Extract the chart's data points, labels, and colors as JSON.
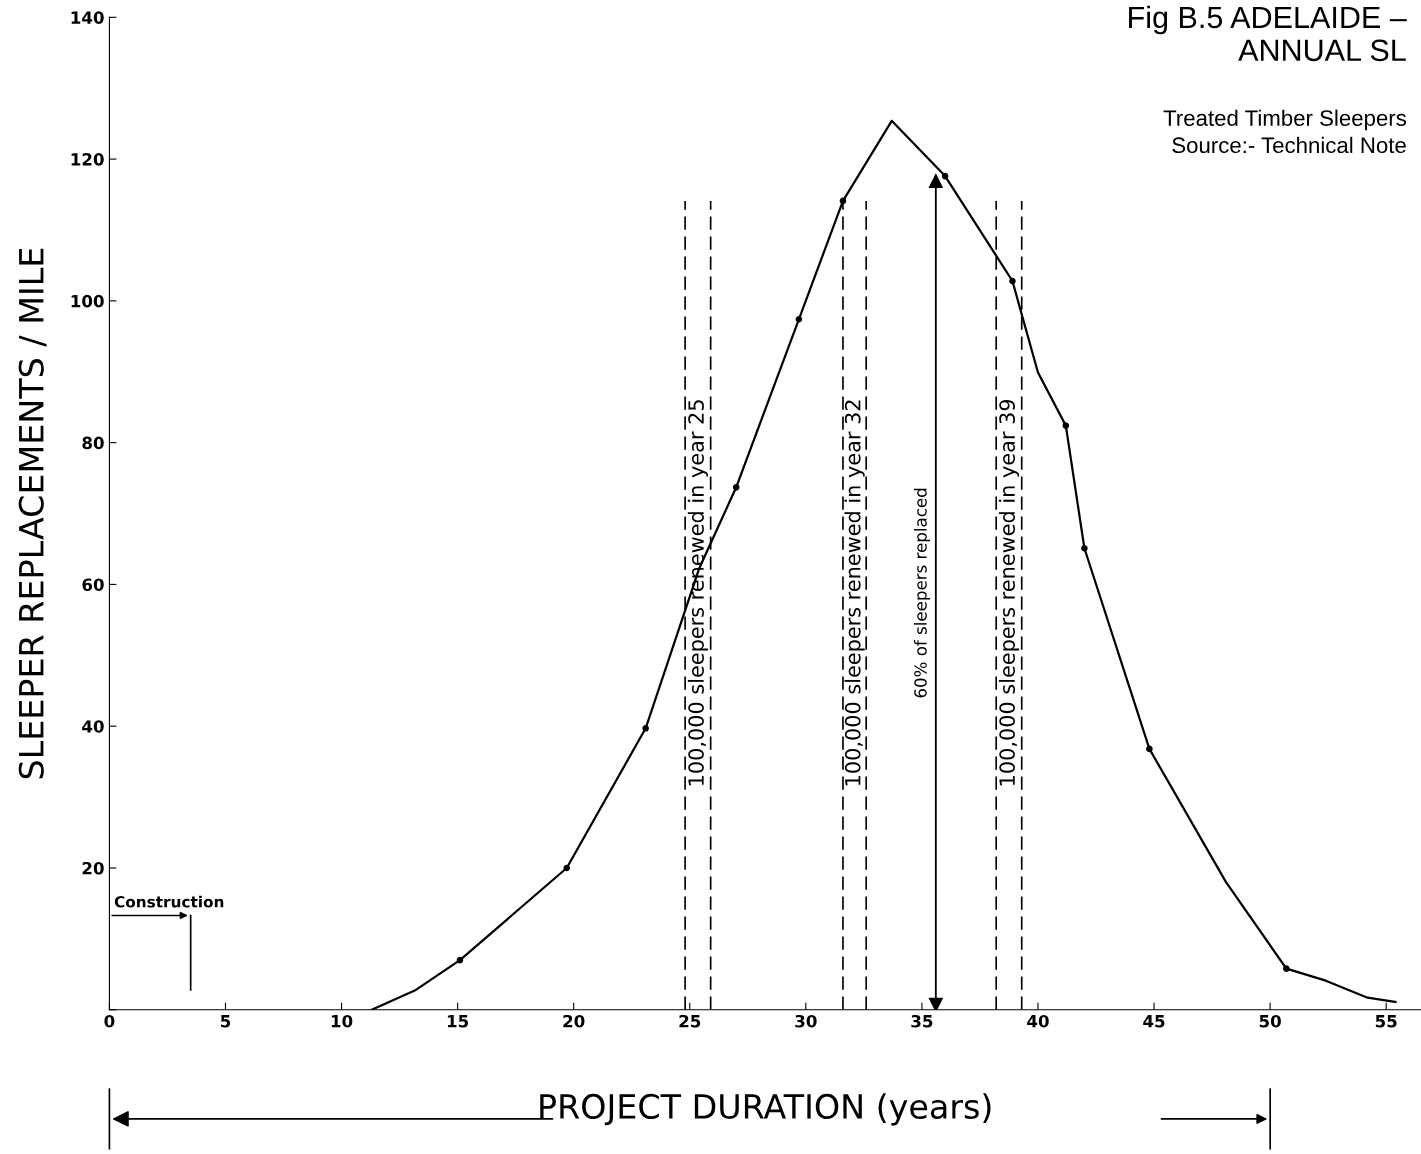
{
  "chart_data": {
    "type": "line",
    "title": "Fig B.5 ADELAIDE –\nANNUAL SL",
    "subtitle": "Treated Timber Sleepers\nSource:- Technical Note",
    "xlabel": "PROJECT DURATION (years)",
    "ylabel": "SLEEPER REPLACEMENTS / MILE",
    "series": [
      {
        "color": "#000000",
        "marker": "none",
        "x": [
          11.3,
          13.2,
          15.1,
          19.7,
          23.1,
          25.4,
          27.0,
          29.7,
          31.6,
          33.7,
          36.0,
          38.9,
          40.0,
          41.2,
          42.0,
          44.8,
          48.1,
          50.7,
          52.4,
          54.2,
          55.4
        ],
        "values": [
          0,
          2.8,
          7,
          20.0,
          39.7,
          62.2,
          73.7,
          97.4,
          114.1,
          125.4,
          117.6,
          102.8,
          89.9,
          82.4,
          65.1,
          36.8,
          18,
          5.8,
          4.1,
          1.7,
          1.1
        ]
      },
      {
        "type": "scatter",
        "color": "#000000",
        "marker": "circle",
        "x": [
          15.1,
          19.7,
          23.1,
          27.0,
          29.7,
          31.6,
          36.0,
          38.9,
          41.2,
          42.0,
          44.8,
          50.7
        ],
        "values": [
          7,
          20.0,
          39.7,
          73.7,
          97.4,
          114.1,
          117.6,
          102.8,
          82.4,
          65.1,
          36.8,
          5.8
        ]
      }
    ],
    "xlim": [
      0,
      56.5
    ],
    "ylim": [
      0,
      140
    ],
    "xticks": [
      0,
      5,
      10,
      15,
      20,
      25,
      30,
      35,
      40,
      45,
      50,
      55
    ],
    "yticks": [
      {
        "value": 0,
        "label": null
      },
      20,
      40,
      60,
      80,
      100,
      120,
      140
    ],
    "ref_lines": [
      {
        "axis": "x",
        "value": 35.6,
        "label": "60% of sleepers replaced",
        "color": "#000000",
        "line_style": "solid"
      },
      {
        "axis": "x",
        "value": 24.8,
        "label": null,
        "line_style": "dashed"
      },
      {
        "axis": "x",
        "value": 25.9,
        "label": null,
        "line_style": "dashed"
      },
      {
        "axis": "x",
        "value": 31.6,
        "label": null,
        "line_style": "dashed"
      },
      {
        "axis": "x",
        "value": 32.6,
        "label": null,
        "line_style": "dashed"
      },
      {
        "axis": "x",
        "value": 38.2,
        "label": null,
        "line_style": "dashed"
      },
      {
        "axis": "x",
        "value": 39.3,
        "label": null,
        "line_style": "dashed"
      },
      {
        "axis": "x",
        "value": 3.5,
        "label": "Construction",
        "line_style": "solid"
      }
    ],
    "annotations": [
      "100,000 sleepers renewed in year 25",
      "100,000 sleepers renewed in year 32",
      "100,000 sleepers renewed in year 39"
    ],
    "grid": false,
    "legend": false
  }
}
